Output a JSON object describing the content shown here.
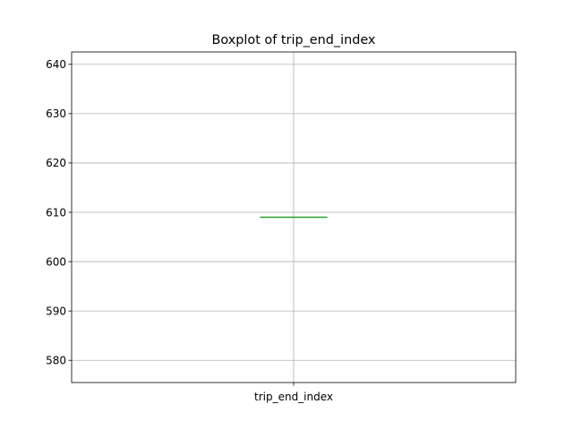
{
  "chart_data": {
    "type": "box",
    "title": "Boxplot of trip_end_index",
    "xlabel": "",
    "ylabel": "",
    "categories": [
      "trip_end_index"
    ],
    "series": [
      {
        "values_summary": {
          "min": 609,
          "q1": 609,
          "median": 609,
          "q3": 609,
          "max": 609
        }
      }
    ],
    "ylim": [
      575.5,
      642.5
    ],
    "yticks": [
      580,
      590,
      600,
      610,
      620,
      630,
      640
    ],
    "grid": true,
    "colors": {
      "median": "#2ca02c",
      "box": "#1f77b4",
      "grid": "#b0b0b0"
    }
  }
}
